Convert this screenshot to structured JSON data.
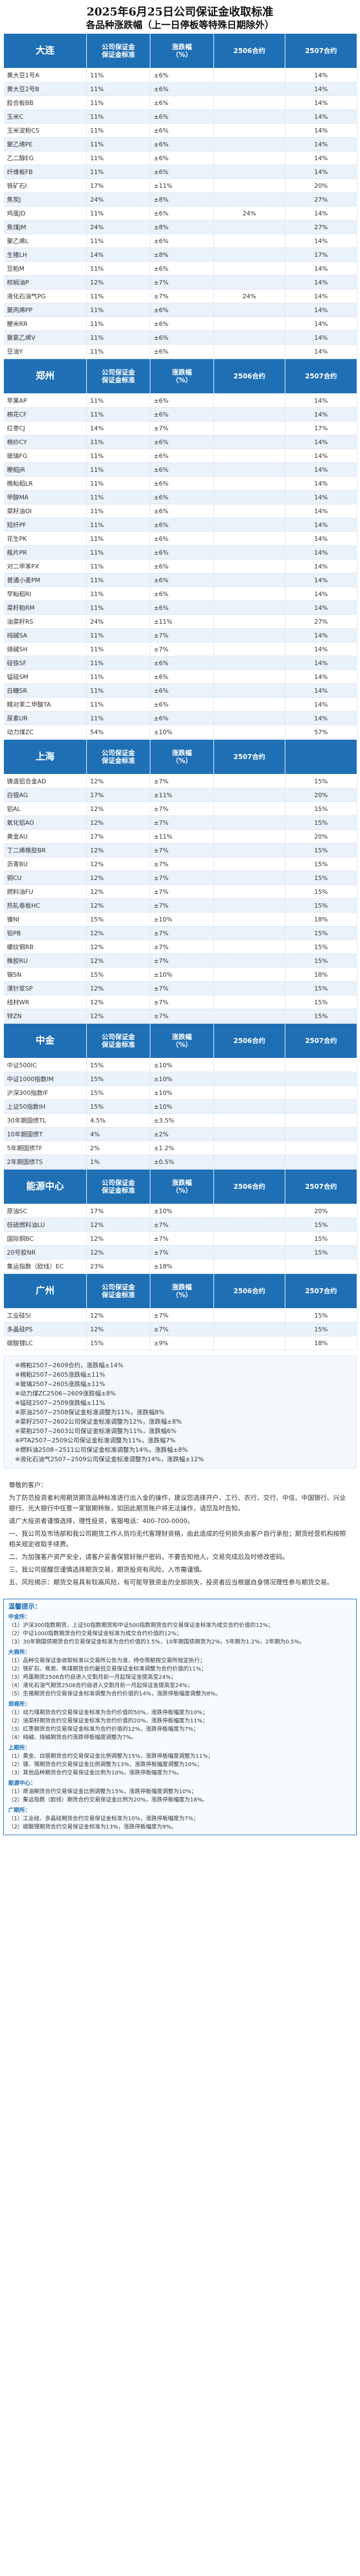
{
  "title": {
    "line1": "2025年6月25日公司保证金收取标准",
    "line2": "各品种涨跌幅（上一日停板等特殊日期除外）"
  },
  "sections": [
    {
      "exchange": "大连",
      "headers": [
        "公司保证金\n保证金标准",
        "涨跌幅\n（%）",
        "2506合约",
        "2507合约"
      ],
      "rows": [
        [
          "黄大豆1号A",
          "11%",
          "±6%",
          "",
          "14%"
        ],
        [
          "黄大豆2号B",
          "11%",
          "±6%",
          "",
          "14%"
        ],
        [
          "胶合板BB",
          "11%",
          "±6%",
          "",
          "14%"
        ],
        [
          "玉米C",
          "11%",
          "±6%",
          "",
          "14%"
        ],
        [
          "玉米淀粉CS",
          "11%",
          "±6%",
          "",
          "14%"
        ],
        [
          "聚乙烯PE",
          "11%",
          "±6%",
          "",
          "14%"
        ],
        [
          "乙二醇EG",
          "11%",
          "±6%",
          "",
          "14%"
        ],
        [
          "纤维板FB",
          "11%",
          "±6%",
          "",
          "14%"
        ],
        [
          "铁矿石I",
          "17%",
          "±11%",
          "",
          "20%"
        ],
        [
          "焦炭J",
          "24%",
          "±8%",
          "",
          "27%"
        ],
        [
          "鸡蛋JD",
          "11%",
          "±6%",
          "24%",
          "14%"
        ],
        [
          "焦煤JM",
          "24%",
          "±8%",
          "",
          "27%"
        ],
        [
          "聚乙烯L",
          "11%",
          "±6%",
          "",
          "14%"
        ],
        [
          "生猪LH",
          "14%",
          "±8%",
          "",
          "17%"
        ],
        [
          "豆粕M",
          "11%",
          "±6%",
          "",
          "14%"
        ],
        [
          "棕榈油P",
          "12%",
          "±7%",
          "",
          "14%"
        ],
        [
          "液化石油气PG",
          "11%",
          "±7%",
          "24%",
          "14%"
        ],
        [
          "聚丙烯PP",
          "11%",
          "±6%",
          "",
          "14%"
        ],
        [
          "粳米RR",
          "11%",
          "±6%",
          "",
          "14%"
        ],
        [
          "聚氯乙烯V",
          "11%",
          "±6%",
          "",
          "14%"
        ],
        [
          "豆油Y",
          "11%",
          "±6%",
          "",
          "14%"
        ]
      ]
    },
    {
      "exchange": "郑州",
      "headers": [
        "公司保证金\n保证金标准",
        "涨跌幅\n（%）",
        "2506合约",
        "2507合约"
      ],
      "rows": [
        [
          "苹果AP",
          "11%",
          "±6%",
          "",
          "14%"
        ],
        [
          "棉花CF",
          "11%",
          "±6%",
          "",
          "14%"
        ],
        [
          "红枣CJ",
          "14%",
          "±7%",
          "",
          "17%"
        ],
        [
          "棉纱CY",
          "11%",
          "±6%",
          "",
          "14%"
        ],
        [
          "玻璃FG",
          "11%",
          "±6%",
          "",
          "14%"
        ],
        [
          "粳稻JR",
          "11%",
          "±6%",
          "",
          "14%"
        ],
        [
          "晚籼稻LR",
          "11%",
          "±6%",
          "",
          "14%"
        ],
        [
          "甲醇MA",
          "11%",
          "±6%",
          "",
          "14%"
        ],
        [
          "菜籽油OI",
          "11%",
          "±6%",
          "",
          "14%"
        ],
        [
          "短纤PF",
          "11%",
          "±6%",
          "",
          "14%"
        ],
        [
          "花生PK",
          "11%",
          "±6%",
          "",
          "14%"
        ],
        [
          "瓶片PR",
          "11%",
          "±6%",
          "",
          "14%"
        ],
        [
          "对二甲苯PX",
          "11%",
          "±6%",
          "",
          "14%"
        ],
        [
          "普通小麦PM",
          "11%",
          "±6%",
          "",
          "14%"
        ],
        [
          "早籼稻RI",
          "11%",
          "±6%",
          "",
          "14%"
        ],
        [
          "菜籽粕RM",
          "11%",
          "±6%",
          "",
          "14%"
        ],
        [
          "油菜籽RS",
          "24%",
          "±11%",
          "",
          "27%"
        ],
        [
          "纯碱SA",
          "11%",
          "±7%",
          "",
          "14%"
        ],
        [
          "烧碱SH",
          "11%",
          "±7%",
          "",
          "14%"
        ],
        [
          "硅铁SF",
          "11%",
          "±6%",
          "",
          "14%"
        ],
        [
          "锰硅SM",
          "11%",
          "±6%",
          "",
          "14%"
        ],
        [
          "白糖SR",
          "11%",
          "±6%",
          "",
          "14%"
        ],
        [
          "精对苯二甲酸TA",
          "11%",
          "±6%",
          "",
          "14%"
        ],
        [
          "尿素UR",
          "11%",
          "±6%",
          "",
          "14%"
        ],
        [
          "动力煤ZC",
          "54%",
          "±10%",
          "",
          "57%"
        ]
      ]
    },
    {
      "exchange": "上海",
      "headers": [
        "公司保证金\n保证金标准",
        "涨跌幅\n（%）",
        "2507合约",
        ""
      ],
      "rows": [
        [
          "铸造铝合金AD",
          "12%",
          "±7%",
          "",
          "15%"
        ],
        [
          "白银AG",
          "17%",
          "±11%",
          "",
          "20%"
        ],
        [
          "铝AL",
          "12%",
          "±7%",
          "",
          "15%"
        ],
        [
          "氧化铝AO",
          "12%",
          "±7%",
          "",
          "15%"
        ],
        [
          "黄金AU",
          "17%",
          "±11%",
          "",
          "20%"
        ],
        [
          "丁二烯橡胶BR",
          "12%",
          "±7%",
          "",
          "15%"
        ],
        [
          "沥青BU",
          "12%",
          "±7%",
          "",
          "15%"
        ],
        [
          "铜CU",
          "12%",
          "±7%",
          "",
          "15%"
        ],
        [
          "燃料油FU",
          "12%",
          "±7%",
          "",
          "15%"
        ],
        [
          "热轧卷板HC",
          "12%",
          "±7%",
          "",
          "15%"
        ],
        [
          "镍NI",
          "15%",
          "±10%",
          "",
          "18%"
        ],
        [
          "铅PB",
          "12%",
          "±7%",
          "",
          "15%"
        ],
        [
          "螺纹钢RB",
          "12%",
          "±7%",
          "",
          "15%"
        ],
        [
          "橡胶RU",
          "12%",
          "±7%",
          "",
          "15%"
        ],
        [
          "锡SN",
          "15%",
          "±10%",
          "",
          "18%"
        ],
        [
          "漂针浆SP",
          "12%",
          "±7%",
          "",
          "15%"
        ],
        [
          "线材WR",
          "12%",
          "±7%",
          "",
          "15%"
        ],
        [
          "锌ZN",
          "12%",
          "±7%",
          "",
          "15%"
        ]
      ]
    },
    {
      "exchange": "中金",
      "headers": [
        "公司保证金\n保证金标准",
        "涨跌幅\n（%）",
        "2506合约",
        "2507合约"
      ],
      "rows": [
        [
          "中证500IC",
          "15%",
          "±10%",
          "",
          ""
        ],
        [
          "中证1000指数IM",
          "15%",
          "±10%",
          "",
          ""
        ],
        [
          "沪深300指数IF",
          "15%",
          "±10%",
          "",
          ""
        ],
        [
          "上证50指数IH",
          "15%",
          "±10%",
          "",
          ""
        ],
        [
          "30年期国债TL",
          "4.5%",
          "±3.5%",
          "",
          ""
        ],
        [
          "10年期国债T",
          "4%",
          "±2%",
          "",
          ""
        ],
        [
          "5年期国债TF",
          "2%",
          "±1.2%",
          "",
          ""
        ],
        [
          "2年期国债TS",
          "1%",
          "±0.5%",
          "",
          ""
        ]
      ]
    },
    {
      "exchange": "能源中心",
      "headers": [
        "公司保证金\n保证金标准",
        "涨跌幅\n（%）",
        "2506合约",
        "2507合约"
      ],
      "rows": [
        [
          "原油SC",
          "17%",
          "±10%",
          "",
          "20%"
        ],
        [
          "低硫燃料油LU",
          "12%",
          "±7%",
          "",
          "15%"
        ],
        [
          "国际铜BC",
          "12%",
          "±7%",
          "",
          "15%"
        ],
        [
          "20号胶NR",
          "12%",
          "±7%",
          "",
          "15%"
        ],
        [
          "集运指数（欧线）EC",
          "23%",
          "±18%",
          "",
          ""
        ]
      ]
    },
    {
      "exchange": "广州",
      "headers": [
        "公司保证金\n保证金标准",
        "涨跌幅\n（%）",
        "2506合约",
        "2507合约"
      ],
      "rows": [
        [
          "工业硅SI",
          "12%",
          "±7%",
          "",
          "15%"
        ],
        [
          "多晶硅PS",
          "12%",
          "±7%",
          "",
          "15%"
        ],
        [
          "碳酸锂LC",
          "15%",
          "±9%",
          "",
          "18%"
        ]
      ]
    }
  ],
  "notes": [
    "※棉粕2507~2609合约，涨跌幅±14%",
    "※棉粕2507~2605涨跌幅±11%",
    "※玻璃2507~2605涨跌幅±11%",
    "※动力煤ZC2506~2609涨跌幅±8%",
    "※锰硅2507~2509涨跌幅±11%",
    "※原油2507~2508保证金标准调整为11%，涨跌幅8%",
    "※菜籽2507~2602公司保证金标准调整为12%，涨跌幅±8%",
    "※菜粕2507~2603公司保证金标准调整为11%，涨跌幅6%",
    "※PTA2507~2509公司保证金标准调整为11%，涨跌幅7%",
    "※燃料油2508~2511公司保证金标准调整为14%，涨跌幅±8%",
    "※液化石油气2507~2509公司保证金标准调整为14%，涨跌幅±12%"
  ],
  "letter": [
    "尊敬的客户：",
    "为了防范投资者利用期货期货品种标准进行出入金的操作，建议您选择开户、工行、农行、交行、中信、中国银行、兴业银行、光大银行中任意一家银期转账，如因此期货账户将无法操作，请您及时告知。",
    "请广大投资者谨慎选择，理性投资，客服电话：400-700-0000。",
    "一、我公司及市场部和我公司期货工作人员均无代客理财资格，由此造成的任何损失由客户自行承担；期货经营机构按照相关规定收取手续费。",
    "二、为加强客户资产安全，请客户妥善保管好账户密码，不要告知他人，交易完成后及时修改密码。",
    "三、我公司提醒您谨慎选择期货交易，期货投资有风险，入市需谨慎。",
    "五、风险揭示：期货交易具有较高风险，有可能导致资金的全部损失，投资者应当根据自身情况理性参与期货交易。"
  ],
  "rules": {
    "title": "温馨提示：",
    "groups": [
      {
        "exchange": "中金所：",
        "items": [
          "（1）沪深300指数期货、上证50指数期货和中证500指数期货合约交易保证金标准为成交合约价值的12%；",
          "（2）中证1000指数期货合约交易保证金标准为成交合约价值的12%；",
          "（3）30年期国债期货合约交易保证金标准为合约价值的3.5%，10年期国债期货为2%，5年期为1.2%，2年期为0.5%。"
        ]
      },
      {
        "exchange": "大商所：",
        "items": [
          "（1）品种交易保证金收取标准以交易所公告为准，持仓限额按交易所规定执行；",
          "（2）铁矿石、焦炭、焦煤期货合约最低交易保证金标准调整为合约价值的11%；",
          "（3）鸡蛋期货2506合约自进入交割月前一月起保证金提高至24%；",
          "（4）液化石油气期货2506合约自进入交割月前一月起保证金提高至24%；",
          "（5）生猪期货合约交易保证金标准调整为合约价值的14%，涨跌停板幅度调整为8%。"
        ]
      },
      {
        "exchange": "郑商所：",
        "items": [
          "（1）动力煤期货合约交易保证金标准为合约价值的50%，涨跌停板幅度为10%；",
          "（2）油菜籽期货合约交易保证金标准为合约价值的20%，涨跌停板幅度为11%；",
          "（3）红枣期货合约交易保证金标准为合约价值的12%，涨跌停板幅度为7%；",
          "（4）纯碱、烧碱期货合约涨跌停板幅度调整为7%。"
        ]
      },
      {
        "exchange": "上期所：",
        "items": [
          "（1）黄金、白银期货合约交易保证金比例调整为15%，涨跌停板幅度调整为11%；",
          "（2）镍、锡期货合约交易保证金比例调整为13%，涨跌停板幅度调整为10%；",
          "（3）其他品种期货合约交易保证金比例为10%，涨跌停板幅度为7%。"
        ]
      },
      {
        "exchange": "能源中心：",
        "items": [
          "（1）原油期货合约交易保证金比例调整为15%，涨跌停板幅度调整为10%；",
          "（2）集运指数（欧线）期货合约交易保证金比例为20%，涨跌停板幅度为18%。"
        ]
      },
      {
        "exchange": "广期所：",
        "items": [
          "（1）工业硅、多晶硅期货合约交易保证金标准为10%，涨跌停板幅度为7%；",
          "（2）碳酸锂期货合约交易保证金标准为13%，涨跌停板幅度为9%。"
        ]
      }
    ]
  }
}
